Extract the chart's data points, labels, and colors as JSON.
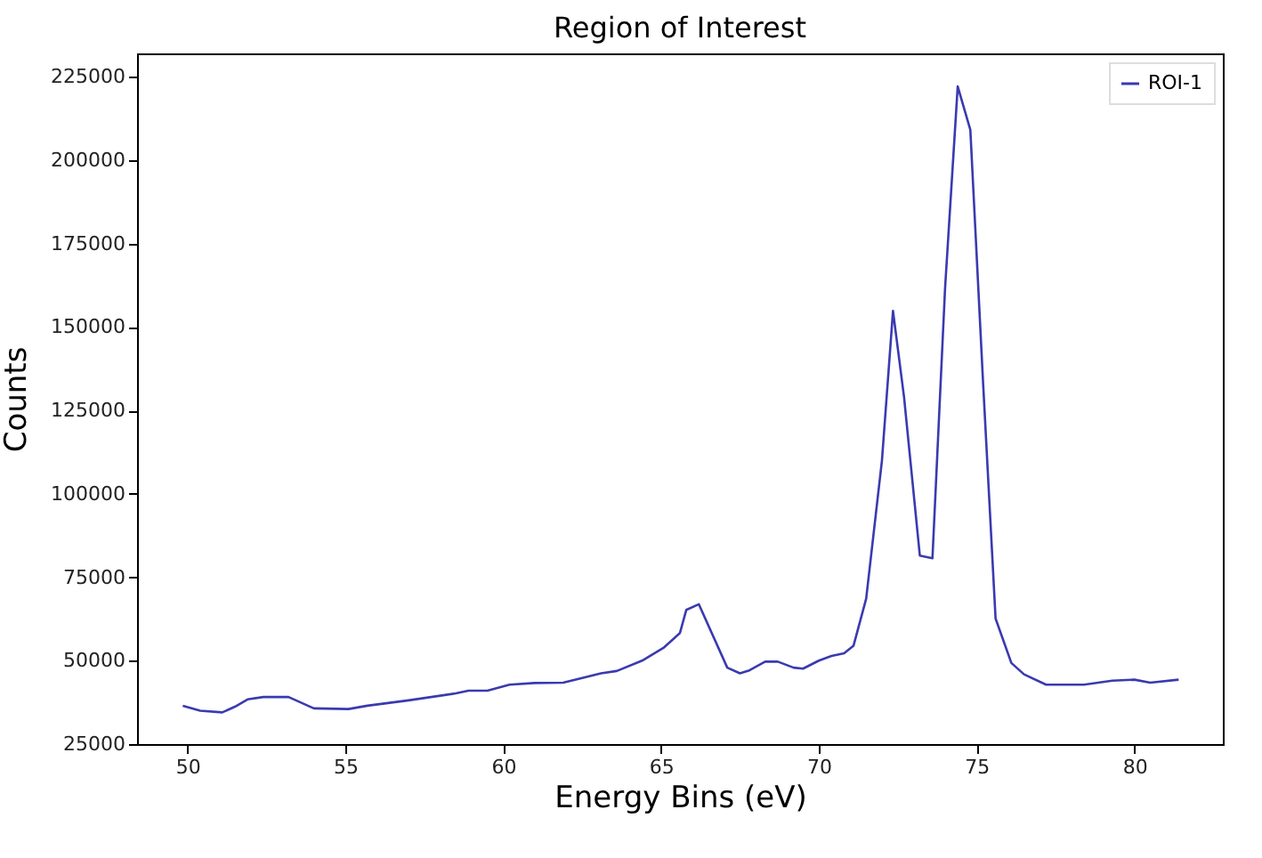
{
  "chart_data": {
    "type": "line",
    "title": "Region of Interest",
    "xlabel": "Energy Bins (eV)",
    "ylabel": "Counts",
    "x": [
      49.85,
      50.4,
      51.1,
      51.5,
      51.9,
      52.4,
      53.2,
      54.0,
      55.1,
      55.7,
      57.0,
      58.5,
      58.9,
      59.5,
      60.2,
      61.0,
      61.9,
      63.1,
      63.6,
      64.4,
      65.1,
      65.6,
      65.8,
      66.2,
      67.1,
      67.5,
      67.8,
      68.3,
      68.7,
      69.2,
      69.5,
      70.0,
      70.4,
      70.8,
      71.1,
      71.5,
      72.0,
      72.35,
      72.7,
      73.2,
      73.6,
      74.0,
      74.4,
      74.8,
      75.2,
      75.6,
      76.1,
      76.5,
      77.2,
      78.4,
      79.3,
      80.0,
      80.5,
      81.4
    ],
    "series": [
      {
        "name": "ROI-1",
        "color": "#3a3ab0",
        "values": [
          36500,
          35000,
          34500,
          36200,
          38400,
          39100,
          39100,
          35700,
          35500,
          36500,
          38100,
          40200,
          41000,
          41000,
          42800,
          43300,
          43400,
          46200,
          46900,
          50000,
          54000,
          58300,
          65200,
          66900,
          47900,
          46200,
          47100,
          49700,
          49700,
          47900,
          47600,
          50000,
          51400,
          52200,
          54500,
          68600,
          110000,
          154800,
          129000,
          81500,
          80700,
          161700,
          222100,
          209100,
          134000,
          62600,
          49300,
          45900,
          42800,
          42800,
          44000,
          44300,
          43400,
          44300
        ]
      }
    ],
    "xlim": [
      48.4,
      82.8
    ],
    "xticks": [
      50,
      55,
      60,
      65,
      70,
      75,
      80
    ],
    "ylim": [
      25000,
      232000
    ],
    "yticks": [
      25000,
      50000,
      75000,
      100000,
      125000,
      150000,
      175000,
      200000,
      225000
    ],
    "grid": false,
    "legend": "top right",
    "marker": "none",
    "line_style": "solid"
  }
}
